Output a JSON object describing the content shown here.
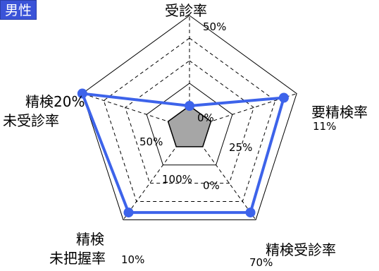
{
  "header": {
    "badge": "男性"
  },
  "chart_data": {
    "type": "radar",
    "title": "",
    "axes": [
      {
        "lines": [
          "受診率"
        ],
        "value_label": "50%"
      },
      {
        "lines": [
          "要精検率"
        ],
        "value_label": "11%"
      },
      {
        "lines": [
          "精検受診率"
        ],
        "value_label": "70%"
      },
      {
        "lines": [
          "精検",
          "未把握率"
        ],
        "value_label": "10%"
      },
      {
        "lines": [
          "精検20%",
          "未受診率"
        ],
        "value_label": ""
      }
    ],
    "series": [
      {
        "values": [
          0.2,
          0.88,
          0.92,
          0.92,
          1.0
        ]
      }
    ],
    "inner_region": {
      "values": [
        0.2,
        0.2,
        0.2,
        0.2,
        0.2
      ]
    },
    "scale_labels": [
      "0%",
      "25%",
      "0%",
      "100%",
      "50%"
    ],
    "colors": {
      "series": "#3d63ea",
      "inner_fill": "#a6a6a6"
    },
    "grid": true,
    "legend": "none"
  }
}
